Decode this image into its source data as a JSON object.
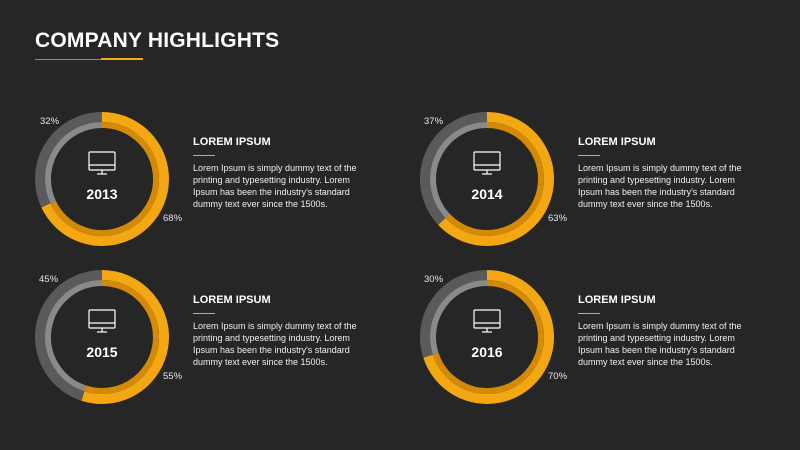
{
  "header": {
    "title": "COMPANY HIGHLIGHTS"
  },
  "colors": {
    "background": "#262626",
    "accent": "#f3a712",
    "accent_dark": "#d58a06",
    "gray_outer": "#5a5a5a",
    "gray_inner": "#8a8a8a"
  },
  "chart_data": [
    {
      "type": "pie",
      "donut": true,
      "center_label": "2013",
      "icon": "monitor-icon",
      "slices": [
        {
          "label": "68%",
          "value": 68,
          "color": "#f3a712"
        },
        {
          "label": "32%",
          "value": 32,
          "color": "#6e6e6e"
        }
      ]
    },
    {
      "type": "pie",
      "donut": true,
      "center_label": "2014",
      "icon": "monitor-icon",
      "slices": [
        {
          "label": "63%",
          "value": 63,
          "color": "#f3a712"
        },
        {
          "label": "37%",
          "value": 37,
          "color": "#6e6e6e"
        }
      ]
    },
    {
      "type": "pie",
      "donut": true,
      "center_label": "2015",
      "icon": "monitor-icon",
      "slices": [
        {
          "label": "55%",
          "value": 55,
          "color": "#f3a712"
        },
        {
          "label": "45%",
          "value": 45,
          "color": "#6e6e6e"
        }
      ]
    },
    {
      "type": "pie",
      "donut": true,
      "center_label": "2016",
      "icon": "monitor-icon",
      "slices": [
        {
          "label": "70%",
          "value": 70,
          "color": "#f3a712"
        },
        {
          "label": "30%",
          "value": 30,
          "color": "#6e6e6e"
        }
      ]
    }
  ],
  "panels": [
    {
      "heading": "LOREM IPSUM",
      "body": "Lorem Ipsum is simply dummy text of the printing and typesetting industry. Lorem Ipsum has been the industry's standard dummy text ever since the 1500s."
    },
    {
      "heading": "LOREM IPSUM",
      "body": "Lorem Ipsum is simply dummy text of the printing and typesetting industry. Lorem Ipsum has been the industry's standard dummy text ever since the 1500s."
    },
    {
      "heading": "LOREM IPSUM",
      "body": "Lorem Ipsum is simply dummy text of the printing and typesetting industry. Lorem Ipsum has been the industry's standard dummy text ever since the 1500s."
    },
    {
      "heading": "LOREM IPSUM",
      "body": "Lorem Ipsum is simply dummy text of the printing and typesetting industry. Lorem Ipsum has been the industry's standard dummy text ever since the 1500s."
    }
  ]
}
